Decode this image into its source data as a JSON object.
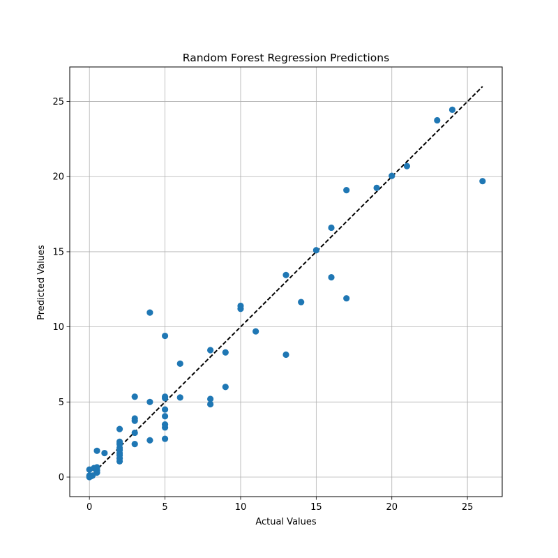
{
  "chart_data": {
    "type": "scatter",
    "title": "Random Forest Regression Predictions",
    "xlabel": "Actual Values",
    "ylabel": "Predicted Values",
    "xlim": [
      -1.3,
      27.3
    ],
    "ylim": [
      -1.3,
      27.3
    ],
    "xticks": [
      0,
      5,
      10,
      15,
      20,
      25
    ],
    "yticks": [
      0,
      5,
      10,
      15,
      20,
      25
    ],
    "xtick_labels": [
      "0",
      "5",
      "10",
      "15",
      "20",
      "25"
    ],
    "ytick_labels": [
      "0",
      "5",
      "10",
      "15",
      "20",
      "25"
    ],
    "grid": true,
    "point_color": "#1f77b4",
    "reference_line": {
      "style": "dashed",
      "color": "#000000",
      "x": [
        0,
        26
      ],
      "y": [
        0,
        26
      ]
    },
    "points": [
      [
        0,
        0.0
      ],
      [
        0,
        0.1
      ],
      [
        0,
        0.5
      ],
      [
        0.1,
        0.05
      ],
      [
        0.2,
        0.1
      ],
      [
        0.3,
        0.6
      ],
      [
        0.5,
        0.3
      ],
      [
        0.5,
        0.45
      ],
      [
        0.5,
        0.65
      ],
      [
        0.5,
        1.75
      ],
      [
        1,
        1.6
      ],
      [
        2,
        1.05
      ],
      [
        2,
        1.25
      ],
      [
        2,
        1.45
      ],
      [
        2,
        1.6
      ],
      [
        2,
        1.8
      ],
      [
        2,
        1.95
      ],
      [
        2,
        2.2
      ],
      [
        2,
        2.35
      ],
      [
        2,
        3.2
      ],
      [
        3,
        2.2
      ],
      [
        3,
        2.95
      ],
      [
        3,
        3.75
      ],
      [
        3,
        3.9
      ],
      [
        3,
        5.35
      ],
      [
        4,
        2.45
      ],
      [
        4,
        5.0
      ],
      [
        4,
        10.95
      ],
      [
        5,
        2.55
      ],
      [
        5,
        3.3
      ],
      [
        5,
        3.5
      ],
      [
        5,
        4.05
      ],
      [
        5,
        4.5
      ],
      [
        5,
        5.25
      ],
      [
        5,
        5.35
      ],
      [
        5,
        9.4
      ],
      [
        6,
        5.3
      ],
      [
        6,
        7.55
      ],
      [
        8,
        4.85
      ],
      [
        8,
        5.2
      ],
      [
        8,
        8.45
      ],
      [
        9,
        6.0
      ],
      [
        9,
        8.3
      ],
      [
        10,
        11.2
      ],
      [
        10,
        11.4
      ],
      [
        11,
        9.7
      ],
      [
        13,
        8.15
      ],
      [
        13,
        13.45
      ],
      [
        14,
        11.65
      ],
      [
        15,
        15.1
      ],
      [
        16,
        13.3
      ],
      [
        16,
        16.6
      ],
      [
        17,
        11.9
      ],
      [
        17,
        19.1
      ],
      [
        19,
        19.25
      ],
      [
        20,
        20.05
      ],
      [
        21,
        20.7
      ],
      [
        23,
        23.75
      ],
      [
        24,
        24.45
      ],
      [
        26,
        19.7
      ]
    ]
  }
}
